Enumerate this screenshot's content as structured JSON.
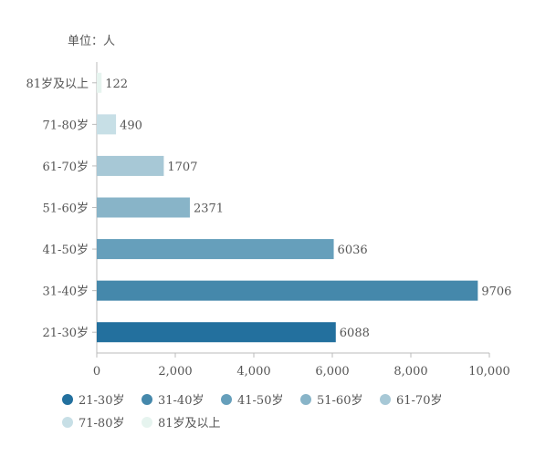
{
  "unit_label": "单位：人",
  "chart_data": {
    "type": "bar",
    "orientation": "horizontal",
    "categories": [
      "21-30岁",
      "31-40岁",
      "41-50岁",
      "51-60岁",
      "61-70岁",
      "71-80岁",
      "81岁及以上"
    ],
    "values": [
      6088,
      9706,
      6036,
      2371,
      1707,
      490,
      122
    ],
    "colors": [
      "#23709e",
      "#4588ab",
      "#669fbb",
      "#88b4c8",
      "#a7c8d6",
      "#c7dfe6",
      "#e6f4ef"
    ],
    "xlim": [
      0,
      10000
    ],
    "xticks": [
      0,
      2000,
      4000,
      6000,
      8000,
      10000
    ],
    "xtick_labels": [
      "0",
      "2,000",
      "4,000",
      "6,000",
      "8,000",
      "10,000"
    ],
    "grid": false,
    "legend_position": "bottom-left",
    "legend": [
      "21-30岁",
      "31-40岁",
      "41-50岁",
      "51-60岁",
      "61-70岁",
      "71-80岁",
      "81岁及以上"
    ]
  }
}
